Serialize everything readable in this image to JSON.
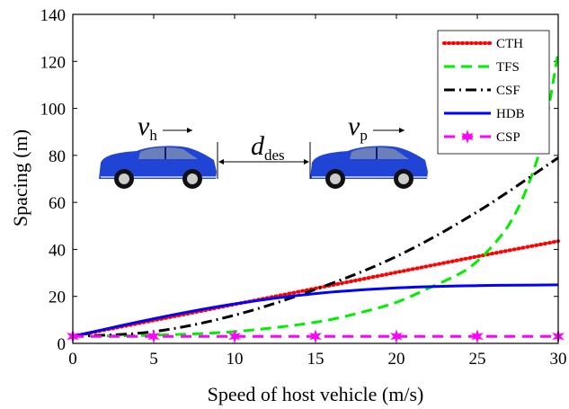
{
  "chart_data": {
    "type": "line",
    "xlabel": "Speed of host vehicle (m/s)",
    "ylabel": "Spacing (m)",
    "xlim": [
      0,
      30
    ],
    "ylim": [
      0,
      140
    ],
    "xticks": [
      0,
      5,
      10,
      15,
      20,
      25,
      30
    ],
    "yticks": [
      0,
      20,
      40,
      60,
      80,
      100,
      120,
      140
    ],
    "grid": false,
    "legend_position": "top-right",
    "series": [
      {
        "name": "CTH",
        "color": "#ff0000",
        "style": "dotted",
        "x": [
          0,
          5,
          10,
          15,
          20,
          25,
          30
        ],
        "y": [
          3,
          9.8,
          16.6,
          23.4,
          30.2,
          37.0,
          43.5
        ]
      },
      {
        "name": "TFS",
        "color": "#00ee00",
        "style": "dashed",
        "x": [
          0,
          5,
          10,
          15,
          18,
          20,
          22,
          24,
          25,
          26,
          27,
          28,
          29,
          30
        ],
        "y": [
          3,
          3.5,
          5.0,
          9.0,
          13.5,
          17.5,
          23.5,
          30.0,
          35.0,
          42.0,
          51.0,
          65.0,
          86.0,
          124.0
        ]
      },
      {
        "name": "CSF",
        "color": "#000000",
        "style": "dashdot",
        "x": [
          0,
          5,
          10,
          15,
          20,
          25,
          30
        ],
        "y": [
          3,
          5.0,
          12.0,
          23.0,
          37.0,
          56.0,
          79.0
        ]
      },
      {
        "name": "HDB",
        "color": "#0000ff",
        "style": "solid",
        "x": [
          0,
          5,
          10,
          15,
          20,
          25,
          30
        ],
        "y": [
          3,
          10.5,
          16.8,
          21.2,
          23.6,
          24.6,
          24.9
        ]
      },
      {
        "name": "CSP",
        "color": "#ff00ff",
        "style": "dashed-star",
        "x": [
          0,
          5,
          10,
          15,
          20,
          25,
          30
        ],
        "y": [
          3,
          3,
          3,
          3,
          3,
          3,
          3
        ]
      }
    ],
    "annotations": {
      "host_speed": {
        "main": "v",
        "sub": "h"
      },
      "preceding_speed": {
        "main": "v",
        "sub": "p"
      },
      "desired_distance": {
        "main": "d",
        "sub": "des"
      }
    }
  },
  "colors": {
    "car_body": "#1f44d6",
    "car_dark": "#0b1d73",
    "car_window": "#6b7fb8"
  }
}
